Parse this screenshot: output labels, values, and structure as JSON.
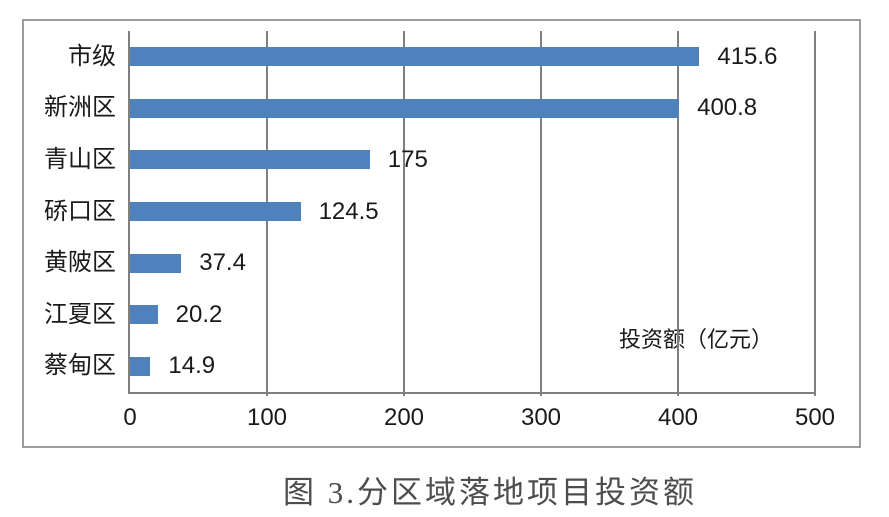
{
  "chart_data": {
    "type": "bar",
    "orientation": "horizontal",
    "title": "图 3.分区域落地项目投资额",
    "categories": [
      "市级",
      "新洲区",
      "青山区",
      "硚口区",
      "黄陂区",
      "江夏区",
      "蔡甸区"
    ],
    "values": [
      415.6,
      400.8,
      175,
      124.5,
      37.4,
      20.2,
      14.9
    ],
    "value_labels": [
      "415.6",
      "400.8",
      "175",
      "124.5",
      "37.4",
      "20.2",
      "14.9"
    ],
    "series_label": "投资额（亿元）",
    "x_ticks": [
      0,
      100,
      200,
      300,
      400,
      500
    ],
    "x_tick_labels": [
      "0",
      "100",
      "200",
      "300",
      "400",
      "500"
    ],
    "xlim": [
      0,
      500
    ],
    "grid": true,
    "gridlines": "vertical",
    "legend_position": "inside-right-middle",
    "colors": {
      "bar": "#4F81BD",
      "gridline": "#7F7F7F",
      "axis": "#7F7F7F",
      "frame_border": "#9D9D9D",
      "text": "#1A1A1A",
      "title_text": "#4D4D4D",
      "background": "#FFFFFF"
    }
  }
}
